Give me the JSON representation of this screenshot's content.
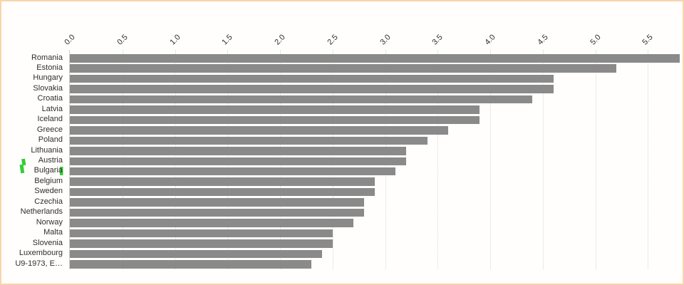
{
  "chart_data": {
    "type": "bar",
    "orientation": "horizontal",
    "title": "",
    "xlabel": "",
    "ylabel": "",
    "categories": [
      "Romania",
      "Estonia",
      "Hungary",
      "Slovakia",
      "Croatia",
      "Latvia",
      "Iceland",
      "Greece",
      "Poland",
      "Lithuania",
      "Austria",
      "Bulgaria",
      "Belgium",
      "Sweden",
      "Czechia",
      "Netherlands",
      "Norway",
      "Malta",
      "Slovenia",
      "Luxembourg",
      "U9-1973, E…"
    ],
    "values": [
      5.8,
      5.2,
      4.6,
      4.6,
      4.4,
      3.9,
      3.9,
      3.6,
      3.4,
      3.2,
      3.2,
      3.1,
      2.9,
      2.9,
      2.8,
      2.8,
      2.7,
      2.5,
      2.5,
      2.4,
      2.3
    ],
    "x_ticks": [
      "0.0",
      "0.5",
      "1.0",
      "1.5",
      "2.0",
      "2.5",
      "3.0",
      "3.5",
      "4.0",
      "4.5",
      "5.0",
      "5.5"
    ],
    "xlim": [
      0,
      5.85
    ],
    "grid": "vertical-dotted",
    "legend": "none",
    "tick_label_rotation_deg": -45,
    "colors": {
      "bar": "#8a8a8a",
      "gridline": "#d8d8d8",
      "axis_line": "#d0d0d0",
      "text": "#2e2e2e"
    }
  },
  "annotations": {
    "marks": [
      {
        "name": "green-mark-left-of-austria-bulgaria",
        "shape": "zigzag-stroke",
        "color": "#35cd35"
      },
      {
        "name": "green-mark-right-of-bulgaria-label",
        "shape": "small-vertical-bar",
        "color": "#35cd35"
      }
    ]
  },
  "frame": {
    "border_color": "#f8d3ab",
    "background": "#fffefc"
  }
}
